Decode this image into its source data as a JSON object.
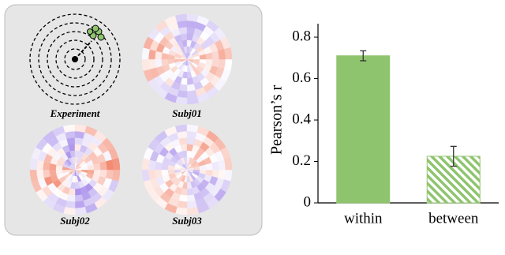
{
  "panels": {
    "labels": [
      "Experiment",
      "Subj01",
      "Subj02",
      "Subj03"
    ]
  },
  "chart_data": {
    "type": "bar",
    "y_label": "Pearson’s r",
    "categories": [
      "within",
      "between"
    ],
    "values": [
      0.71,
      0.225
    ],
    "errors": [
      0.024,
      0.048
    ],
    "colors": [
      "#8fc46f",
      "#8fc46f"
    ],
    "hatched": [
      false,
      true
    ],
    "ylim": [
      0,
      0.865
    ],
    "yticks": [
      0,
      0.2,
      0.4,
      0.6,
      0.8
    ]
  }
}
